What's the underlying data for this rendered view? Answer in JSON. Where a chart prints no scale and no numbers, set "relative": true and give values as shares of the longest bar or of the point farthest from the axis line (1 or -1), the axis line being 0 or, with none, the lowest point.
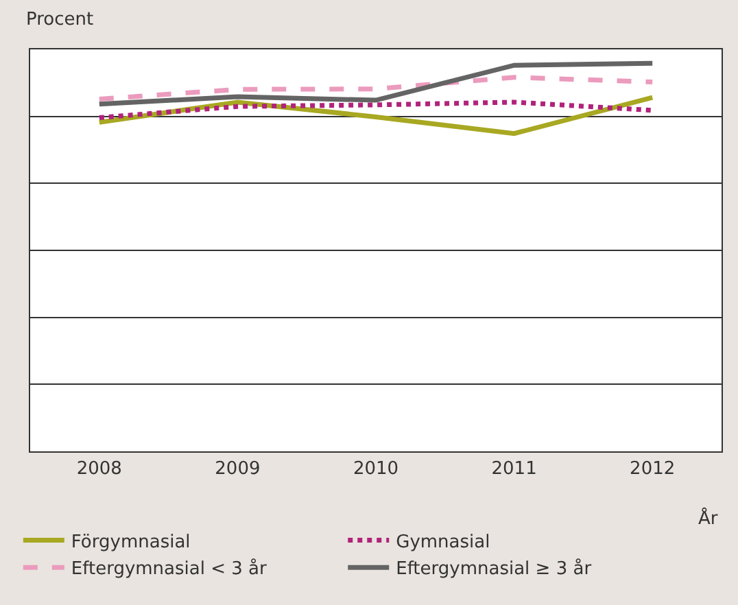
{
  "chart_data": {
    "type": "line",
    "ylabel": "Procent",
    "xlabel": "År",
    "relative": true,
    "categories": [
      "2008",
      "2009",
      "2010",
      "2011",
      "2012"
    ],
    "series": [
      {
        "name": "Förgymnasial",
        "color": "#a8a822",
        "line_style": "solid",
        "values": [
          0.848,
          0.9,
          0.862,
          0.819,
          0.912
        ]
      },
      {
        "name": "Gymnasial",
        "color": "#b0237a",
        "line_style": "dotted",
        "values": [
          0.86,
          0.889,
          0.893,
          0.9,
          0.879
        ]
      },
      {
        "name": "Eftergymnasial < 3 år",
        "color": "#eb9bbd",
        "line_style": "dashed",
        "values": [
          0.908,
          0.933,
          0.934,
          0.964,
          0.952
        ]
      },
      {
        "name": "Eftergymnasial ≥ 3 år",
        "color": "#646464",
        "line_style": "solid",
        "values": [
          0.895,
          0.914,
          0.905,
          0.995,
          1
        ]
      }
    ],
    "grid": "y",
    "legend": "bottom",
    "marker": "none"
  }
}
